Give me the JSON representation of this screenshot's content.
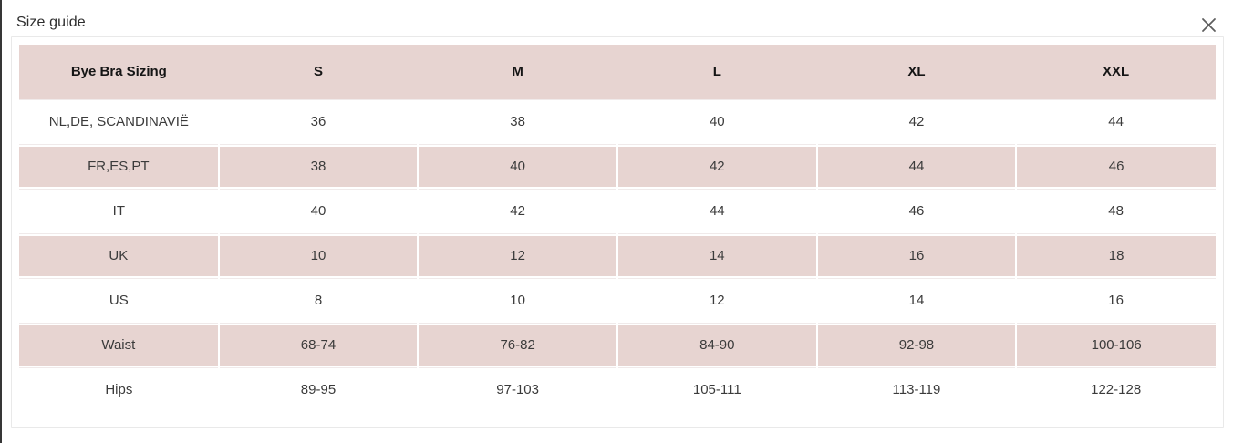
{
  "modal": {
    "title": "Size guide"
  },
  "table": {
    "columns": [
      "Bye Bra Sizing",
      "S",
      "M",
      "L",
      "XL",
      "XXL"
    ],
    "rows": [
      {
        "label": "NL,DE, SCANDINAVIË",
        "values": [
          "36",
          "38",
          "40",
          "42",
          "44"
        ],
        "shaded": false
      },
      {
        "label": "FR,ES,PT",
        "values": [
          "38",
          "40",
          "42",
          "44",
          "46"
        ],
        "shaded": true
      },
      {
        "label": "IT",
        "values": [
          "40",
          "42",
          "44",
          "46",
          "48"
        ],
        "shaded": false
      },
      {
        "label": "UK",
        "values": [
          "10",
          "12",
          "14",
          "16",
          "18"
        ],
        "shaded": true
      },
      {
        "label": "US",
        "values": [
          "8",
          "10",
          "12",
          "14",
          "16"
        ],
        "shaded": false
      },
      {
        "label": "Waist",
        "values": [
          "68-74",
          "76-82",
          "84-90",
          "92-98",
          "100-106"
        ],
        "shaded": true
      },
      {
        "label": "Hips",
        "values": [
          "89-95",
          "97-103",
          "105-111",
          "113-119",
          "122-128"
        ],
        "shaded": false
      }
    ],
    "colors": {
      "header_bg": "#e7d4d1",
      "shaded_row_bg": "#e7d4d1",
      "header_text": "#151515",
      "body_text": "#3b3b3b"
    }
  }
}
